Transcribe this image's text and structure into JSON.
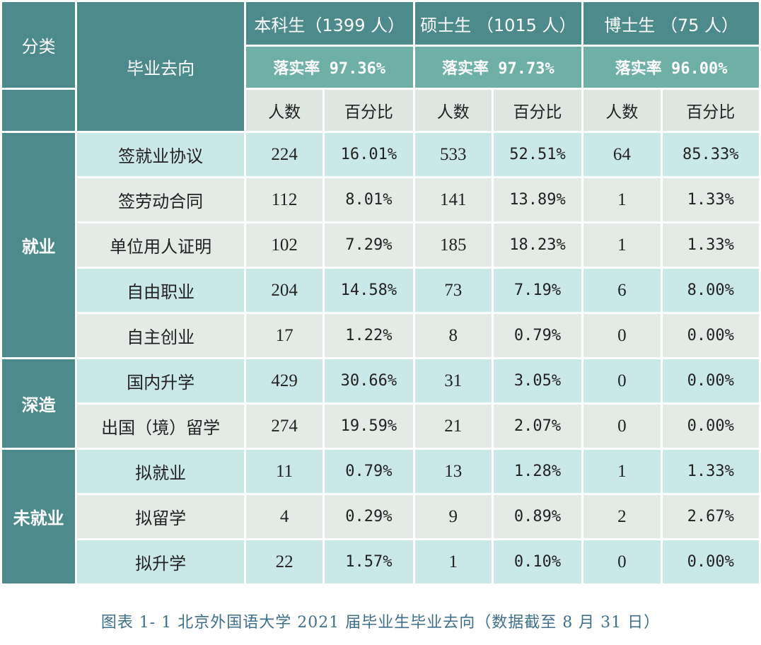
{
  "header": {
    "category": "分类",
    "destination": "毕业去向",
    "groups": [
      {
        "title": "本科生（1399 人）",
        "rate": "落实率 97.36%"
      },
      {
        "title": "硕士生 （1015 人）",
        "rate": "落实率 97.73%"
      },
      {
        "title": "博士生 （75 人）",
        "rate": "落实率 96.00%"
      }
    ],
    "count_label": "人数",
    "percent_label": "百分比"
  },
  "categories": {
    "employed": "就业",
    "further_study": "深造",
    "unemployed": "未就业"
  },
  "rows": [
    {
      "label": "签就业协议",
      "values": [
        "224",
        "16.01%",
        "533",
        "52.51%",
        "64",
        "85.33%"
      ]
    },
    {
      "label": "签劳动合同",
      "values": [
        "112",
        "8.01%",
        "141",
        "13.89%",
        "1",
        "1.33%"
      ]
    },
    {
      "label": "单位用人证明",
      "values": [
        "102",
        "7.29%",
        "185",
        "18.23%",
        "1",
        "1.33%"
      ]
    },
    {
      "label": "自由职业",
      "values": [
        "204",
        "14.58%",
        "73",
        "7.19%",
        "6",
        "8.00%"
      ]
    },
    {
      "label": "自主创业",
      "values": [
        "17",
        "1.22%",
        "8",
        "0.79%",
        "0",
        "0.00%"
      ]
    },
    {
      "label": "国内升学",
      "values": [
        "429",
        "30.66%",
        "31",
        "3.05%",
        "0",
        "0.00%"
      ]
    },
    {
      "label": "出国（境）留学",
      "values": [
        "274",
        "19.59%",
        "21",
        "2.07%",
        "0",
        "0.00%"
      ]
    },
    {
      "label": "拟就业",
      "values": [
        "11",
        "0.79%",
        "13",
        "1.28%",
        "1",
        "1.33%"
      ]
    },
    {
      "label": "拟留学",
      "values": [
        "4",
        "0.29%",
        "9",
        "0.89%",
        "2",
        "2.67%"
      ]
    },
    {
      "label": "拟升学",
      "values": [
        "22",
        "1.57%",
        "1",
        "0.10%",
        "0",
        "0.00%"
      ]
    }
  ],
  "caption": "图表 1- 1 北京外国语大学 2021 届毕业生毕业去向（数据截至 8 月 31 日）"
}
